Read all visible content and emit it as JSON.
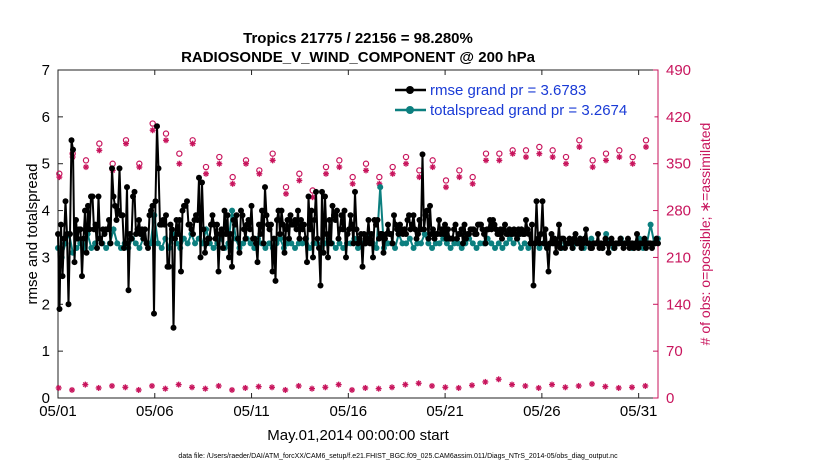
{
  "colors": {
    "rmse": "#000000",
    "spread": "#0c7f7f",
    "obs": "#c8155d",
    "legend_text": "#1a3bd6"
  },
  "chart_data": {
    "type": "line",
    "title": "Tropics 21775 / 22156 = 98.280%",
    "subtitle": "RADIOSONDE_V_WIND_COMPONENT @ 200 hPa",
    "xlabel": "May.01,2014 00:00:00 start",
    "ylabel_left": "rmse and totalspread",
    "ylabel_right": "# of obs: o=possible; ∗=assimilated",
    "footnote": "data file: /Users/raeder/DAI/ATM_forcXX/CAM6_setup/f.e21.FHIST_BGC.f09_025.CAM6assim.011/Diags_NTrS_2014-05/obs_diag_output.nc",
    "xlim": [
      1,
      32
    ],
    "ylim_left": [
      0,
      7
    ],
    "ylim_right": [
      0,
      490
    ],
    "xticks": [
      1,
      6,
      11,
      16,
      21,
      26,
      31
    ],
    "xtick_labels": [
      "05/01",
      "05/06",
      "05/11",
      "05/16",
      "05/21",
      "05/26",
      "05/31"
    ],
    "yticks_left": [
      0,
      1,
      2,
      3,
      4,
      5,
      6,
      7
    ],
    "yticks_right": [
      0,
      70,
      140,
      210,
      280,
      350,
      420,
      490
    ],
    "legend": [
      {
        "name": "rmse grand pr = 3.6783",
        "color": "#000000"
      },
      {
        "name": "totalspread grand pr = 3.2674",
        "color": "#0c7f7f"
      }
    ],
    "series": [
      {
        "name": "rmse",
        "color": "#000000",
        "values": [
          3.5,
          1.9,
          3.7,
          2.6,
          3.4,
          4.2,
          3.5,
          2.0,
          3.5,
          5.5,
          5.3,
          2.9,
          3.8,
          3.4,
          3.6,
          3.6,
          2.6,
          3.4,
          4.0,
          3.1,
          4.1,
          3.6,
          4.3,
          4.3,
          3.6,
          3.7,
          3.2,
          4.3,
          3.4,
          3.3,
          3.6,
          3.5,
          3.6,
          3.6,
          3.8,
          3.3,
          4.9,
          4.3,
          4.1,
          3.8,
          4.0,
          4.9,
          3.9,
          3.9,
          3.2,
          3.3,
          4.5,
          2.3,
          3.5,
          3.4,
          4.3,
          4.4,
          3.5,
          3.6,
          3.8,
          3.5,
          3.6,
          3.4,
          3.6,
          3.3,
          3.2,
          3.9,
          4.0,
          4.1,
          1.8,
          4.2,
          5.8,
          4.9,
          3.7,
          3.7,
          3.8,
          3.7,
          3.9,
          2.8,
          2.8,
          3.7,
          3.6,
          1.5,
          3.4,
          3.8,
          3.5,
          3.8,
          2.7,
          4.0,
          4.1,
          4.1,
          4.2,
          3.7,
          3.7,
          3.6,
          3.5,
          3.8,
          3.9,
          3.8,
          4.7,
          3.0,
          4.6,
          3.6,
          3.1,
          3.3,
          3.4,
          3.4,
          3.7,
          3.9,
          3.7,
          3.4,
          3.7,
          2.7,
          3.5,
          3.6,
          3.2,
          4.0,
          3.5,
          3.9,
          3.0,
          3.5,
          2.8,
          3.8,
          3.7,
          3.9,
          3.4,
          3.1,
          4.0,
          3.9,
          3.6,
          3.4,
          3.7,
          3.8,
          3.6,
          4.1,
          3.4,
          3.4,
          3.3,
          2.9,
          3.7,
          3.5,
          4.0,
          3.3,
          4.5,
          3.9,
          3.7,
          3.6,
          3.7,
          2.7,
          3.4,
          2.5,
          3.8,
          4.0,
          3.5,
          4.0,
          3.7,
          3.1,
          3.6,
          3.8,
          3.4,
          3.9,
          3.7,
          3.7,
          3.8,
          3.6,
          4.0,
          3.4,
          3.8,
          3.6,
          3.7,
          3.4,
          2.9,
          4.3,
          3.6,
          4.0,
          3.0,
          3.8,
          4.4,
          3.4,
          3.2,
          2.4,
          4.4,
          3.1,
          4.3,
          3.5,
          3.0,
          3.8,
          3.3,
          4.1,
          3.9,
          3.8,
          4.0,
          3.4,
          3.6,
          3.9,
          3.6,
          4.0,
          3.0,
          3.5,
          3.6,
          3.9,
          3.7,
          3.3,
          4.4,
          3.6,
          3.3,
          3.4,
          3.5,
          2.8,
          3.5,
          3.3,
          3.4,
          3.8,
          3.3,
          3.5,
          3.0,
          3.8,
          3.7,
          3.8,
          3.4,
          3.5,
          3.5,
          3.1,
          3.4,
          3.5,
          3.7,
          3.5,
          3.5,
          3.3,
          3.9,
          3.7,
          3.6,
          3.5,
          3.7,
          3.6,
          3.5,
          3.6,
          3.5,
          3.8,
          3.9,
          3.6,
          3.7,
          3.9,
          3.6,
          3.4,
          3.5,
          3.8,
          3.6,
          5.2,
          3.6,
          3.9,
          4.0,
          3.4,
          4.1,
          3.5,
          3.6,
          3.4,
          3.5,
          3.5,
          3.8,
          3.5,
          3.6,
          3.5,
          3.7,
          3.4,
          3.6,
          3.4,
          3.4,
          3.4,
          3.6,
          3.7,
          3.4,
          3.5,
          3.5,
          3.6,
          3.3,
          3.7,
          3.4,
          3.5,
          3.5,
          3.6,
          3.6,
          3.6,
          3.5,
          3.5,
          3.7,
          3.7,
          3.7,
          3.6,
          3.5,
          3.3,
          3.6,
          3.6,
          3.8,
          3.6,
          3.8,
          3.7,
          3.6,
          3.5,
          3.5,
          3.6,
          3.4,
          3.6,
          3.7,
          3.5,
          3.5,
          3.6,
          3.5,
          3.5,
          3.6,
          3.5,
          3.4,
          3.6,
          3.5,
          3.6,
          3.5,
          3.5,
          3.8,
          3.6,
          3.5,
          3.3,
          3.7,
          2.4,
          3.3,
          4.2,
          3.4,
          3.3,
          3.5,
          4.2,
          3.3,
          3.6,
          3.2,
          2.7,
          3.3,
          3.5,
          3.3,
          3.4,
          3.1,
          3.3,
          3.7,
          3.2,
          3.4,
          3.4,
          3.2,
          3.3,
          3.3,
          3.4,
          3.3,
          3.2,
          3.4,
          3.5,
          3.3,
          3.3,
          3.4,
          3.2,
          3.3,
          3.4,
          3.6,
          3.3,
          3.3,
          3.2,
          3.2,
          3.3,
          3.3,
          3.3,
          3.5,
          3.2,
          3.3,
          3.2,
          3.3,
          3.4,
          3.3,
          3.1,
          3.3,
          3.4,
          3.3,
          3.2,
          3.3,
          3.3,
          3.3,
          3.4,
          3.3,
          3.2,
          3.3,
          3.3,
          3.4,
          3.2,
          3.3,
          3.3,
          3.2,
          3.3,
          3.5,
          3.2,
          3.3,
          3.3,
          3.3,
          3.4,
          3.2,
          3.3,
          3.3,
          3.3,
          3.2,
          3.3,
          3.3,
          3.4,
          3.3
        ]
      },
      {
        "name": "totalspread",
        "color": "#0c7f7f",
        "values": [
          3.2,
          3.0,
          3.3,
          3.5,
          3.1,
          3.2,
          3.3,
          3.2,
          3.5,
          3.2,
          3.3,
          3.4,
          3.3,
          3.2,
          3.3,
          3.6,
          3.3,
          3.2,
          3.3,
          3.2,
          3.4,
          3.3,
          3.2,
          3.4,
          3.3,
          3.3,
          3.9,
          3.3,
          3.2,
          3.4,
          3.2,
          3.5,
          3.3,
          3.2,
          3.4,
          3.3,
          3.5,
          3.3,
          3.4,
          3.3,
          3.6,
          3.3,
          3.2,
          3.3,
          3.4,
          3.2,
          3.3,
          4.0,
          3.4,
          3.2,
          3.3,
          3.4,
          3.3,
          3.2,
          3.4,
          3.3,
          3.2,
          3.3,
          3.2,
          3.3,
          3.4,
          3.2,
          3.3,
          3.3,
          3.2,
          3.3,
          3.3,
          3.4,
          3.2,
          3.3,
          3.3,
          3.2,
          3.3,
          3.4,
          3.3,
          3.2,
          3.3,
          3.2,
          3.3,
          3.3,
          3.4,
          3.2,
          3.3,
          3.3,
          3.5,
          3.3,
          3.2,
          4.5,
          3.2,
          3.3,
          3.3,
          3.2,
          3.5,
          3.3,
          3.3,
          3.4,
          3.2,
          3.3,
          3.3,
          3.5,
          3.3,
          3.2,
          3.3,
          3.3,
          3.4,
          3.3,
          3.2,
          3.3,
          3.3,
          3.2,
          3.3,
          3.4,
          3.3,
          3.2,
          3.3,
          3.3,
          3.4,
          3.3,
          3.2,
          3.3,
          3.2,
          3.3,
          3.4,
          3.3,
          3.4,
          3.2,
          3.3,
          3.2,
          3.3,
          3.3,
          3.2,
          3.3,
          3.2,
          3.3,
          3.4,
          3.3,
          3.2,
          3.3,
          3.3,
          3.2,
          3.3,
          3.4,
          3.2,
          3.3,
          3.4,
          3.3,
          3.3,
          3.2,
          3.5,
          3.3,
          3.2,
          3.3,
          3.4,
          3.3,
          3.3,
          3.2,
          3.3,
          3.4,
          3.2,
          3.3,
          3.7,
          3.3,
          3.4
        ]
      },
      {
        "name": "obs possible",
        "color": "#c8155d",
        "marker": "o",
        "values": [
          335,
          365,
          355,
          380,
          350,
          385,
          350,
          410,
          395,
          365,
          385,
          345,
          360,
          330,
          355,
          340,
          365,
          315,
          335,
          310,
          345,
          355,
          330,
          350,
          330,
          345,
          360,
          340,
          355,
          325,
          340,
          330,
          365,
          365,
          370,
          370,
          375,
          370,
          360,
          385,
          355,
          365,
          370,
          360,
          385
        ]
      },
      {
        "name": "obs assimilated",
        "color": "#c8155d",
        "marker": "*",
        "values": [
          330,
          360,
          345,
          370,
          340,
          380,
          345,
          400,
          385,
          350,
          380,
          335,
          350,
          320,
          350,
          335,
          355,
          305,
          325,
          300,
          335,
          345,
          320,
          340,
          320,
          335,
          350,
          330,
          345,
          315,
          330,
          320,
          355,
          355,
          365,
          360,
          365,
          360,
          350,
          375,
          345,
          355,
          360,
          350,
          375
        ]
      },
      {
        "name": "obs bottom",
        "color": "#c8155d",
        "marker": "*",
        "values": [
          15,
          12,
          20,
          15,
          18,
          16,
          12,
          18,
          14,
          20,
          16,
          14,
          18,
          12,
          15,
          17,
          16,
          12,
          18,
          14,
          16,
          20,
          12,
          15,
          14,
          16,
          20,
          22,
          18,
          16,
          15,
          19,
          24,
          28,
          20,
          18,
          15,
          20,
          16,
          18,
          21,
          17,
          15,
          16,
          18
        ]
      }
    ]
  }
}
